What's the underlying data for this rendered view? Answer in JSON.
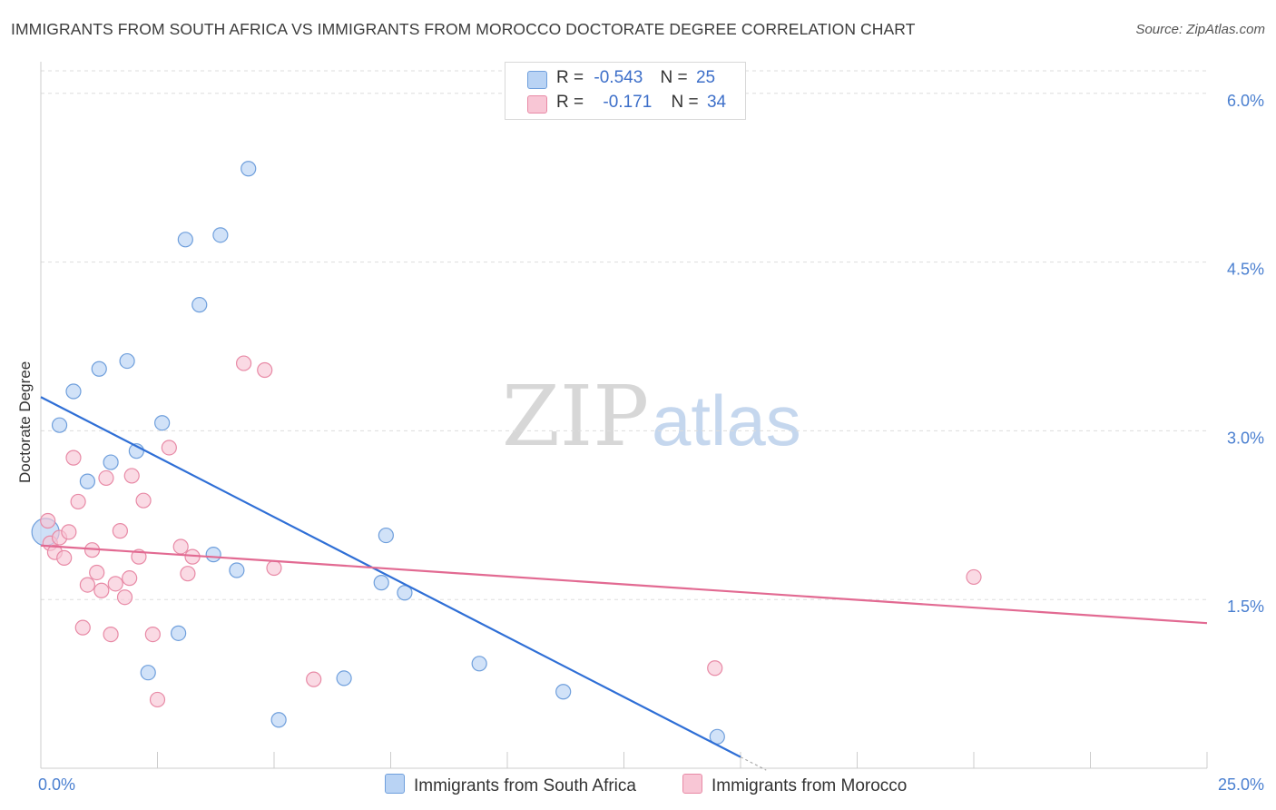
{
  "header": {
    "title": "IMMIGRANTS FROM SOUTH AFRICA VS IMMIGRANTS FROM MOROCCO DOCTORATE DEGREE CORRELATION CHART",
    "source": "Source: ZipAtlas.com"
  },
  "watermark": {
    "zip": "ZIP",
    "atlas": "atlas"
  },
  "legend": {
    "series1": {
      "r_label": "R =",
      "r_value": "-0.543",
      "n_label": "N =",
      "n_value": "25"
    },
    "series2": {
      "r_label": "R =",
      "r_value": "-0.171",
      "n_label": "N =",
      "n_value": "34"
    }
  },
  "colors": {
    "blue_fill": "#b9d3f4",
    "blue_stroke": "#6f9fdc",
    "blue_line": "#2f6fd6",
    "pink_fill": "#f8c6d5",
    "pink_stroke": "#e88aa6",
    "pink_line": "#e26a92",
    "grid": "#dddddd",
    "axis": "#cccccc"
  },
  "chart_data": {
    "type": "scatter",
    "title": "IMMIGRANTS FROM SOUTH AFRICA VS IMMIGRANTS FROM MOROCCO DOCTORATE DEGREE CORRELATION CHART",
    "xlabel": "",
    "ylabel": "Doctorate Degree",
    "xlim": [
      0,
      25
    ],
    "ylim": [
      0,
      6.2
    ],
    "x_tick_labels": [
      "0.0%",
      "25.0%"
    ],
    "y_ticks": [
      1.5,
      3.0,
      4.5,
      6.0
    ],
    "y_tick_labels": [
      "1.5%",
      "3.0%",
      "4.5%",
      "6.0%"
    ],
    "grid": true,
    "series": [
      {
        "name": "Immigrants from South Africa",
        "color": "blue",
        "r": -0.543,
        "n": 25,
        "trend": {
          "x": [
            0,
            15
          ],
          "y": [
            3.3,
            0.1
          ]
        },
        "points": [
          {
            "x": 0.1,
            "y": 2.1,
            "big": true
          },
          {
            "x": 0.4,
            "y": 3.05
          },
          {
            "x": 0.7,
            "y": 3.35
          },
          {
            "x": 1.0,
            "y": 2.55
          },
          {
            "x": 1.25,
            "y": 3.55
          },
          {
            "x": 1.5,
            "y": 2.72
          },
          {
            "x": 1.85,
            "y": 3.62
          },
          {
            "x": 2.05,
            "y": 2.82
          },
          {
            "x": 2.3,
            "y": 0.85
          },
          {
            "x": 2.6,
            "y": 3.07
          },
          {
            "x": 2.95,
            "y": 1.2
          },
          {
            "x": 3.1,
            "y": 4.7
          },
          {
            "x": 3.4,
            "y": 4.12
          },
          {
            "x": 3.7,
            "y": 1.9
          },
          {
            "x": 3.85,
            "y": 4.74
          },
          {
            "x": 4.2,
            "y": 1.76
          },
          {
            "x": 4.45,
            "y": 5.33
          },
          {
            "x": 5.1,
            "y": 0.43
          },
          {
            "x": 6.5,
            "y": 0.8
          },
          {
            "x": 7.3,
            "y": 1.65
          },
          {
            "x": 7.4,
            "y": 2.07
          },
          {
            "x": 7.8,
            "y": 1.56
          },
          {
            "x": 9.4,
            "y": 0.93
          },
          {
            "x": 11.2,
            "y": 0.68
          },
          {
            "x": 14.5,
            "y": 0.28
          }
        ]
      },
      {
        "name": "Immigrants from Morocco",
        "color": "pink",
        "r": -0.171,
        "n": 34,
        "trend": {
          "x": [
            0,
            25
          ],
          "y": [
            1.98,
            1.29
          ]
        },
        "points": [
          {
            "x": 0.15,
            "y": 2.2
          },
          {
            "x": 0.2,
            "y": 2.0
          },
          {
            "x": 0.3,
            "y": 1.92
          },
          {
            "x": 0.4,
            "y": 2.05
          },
          {
            "x": 0.5,
            "y": 1.87
          },
          {
            "x": 0.6,
            "y": 2.1
          },
          {
            "x": 0.7,
            "y": 2.76
          },
          {
            "x": 0.8,
            "y": 2.37
          },
          {
            "x": 0.9,
            "y": 1.25
          },
          {
            "x": 1.0,
            "y": 1.63
          },
          {
            "x": 1.1,
            "y": 1.94
          },
          {
            "x": 1.2,
            "y": 1.74
          },
          {
            "x": 1.3,
            "y": 1.58
          },
          {
            "x": 1.4,
            "y": 2.58
          },
          {
            "x": 1.5,
            "y": 1.19
          },
          {
            "x": 1.6,
            "y": 1.64
          },
          {
            "x": 1.7,
            "y": 2.11
          },
          {
            "x": 1.8,
            "y": 1.52
          },
          {
            "x": 1.9,
            "y": 1.69
          },
          {
            "x": 1.95,
            "y": 2.6
          },
          {
            "x": 2.1,
            "y": 1.88
          },
          {
            "x": 2.2,
            "y": 2.38
          },
          {
            "x": 2.4,
            "y": 1.19
          },
          {
            "x": 2.5,
            "y": 0.61
          },
          {
            "x": 2.75,
            "y": 2.85
          },
          {
            "x": 3.0,
            "y": 1.97
          },
          {
            "x": 3.15,
            "y": 1.73
          },
          {
            "x": 3.25,
            "y": 1.88
          },
          {
            "x": 4.35,
            "y": 3.6
          },
          {
            "x": 4.8,
            "y": 3.54
          },
          {
            "x": 5.0,
            "y": 1.78
          },
          {
            "x": 5.85,
            "y": 0.79
          },
          {
            "x": 14.45,
            "y": 0.89
          },
          {
            "x": 20.0,
            "y": 1.7
          }
        ]
      }
    ]
  },
  "bottom_legend": {
    "item1": "Immigrants from South Africa",
    "item2": "Immigrants from Morocco"
  }
}
